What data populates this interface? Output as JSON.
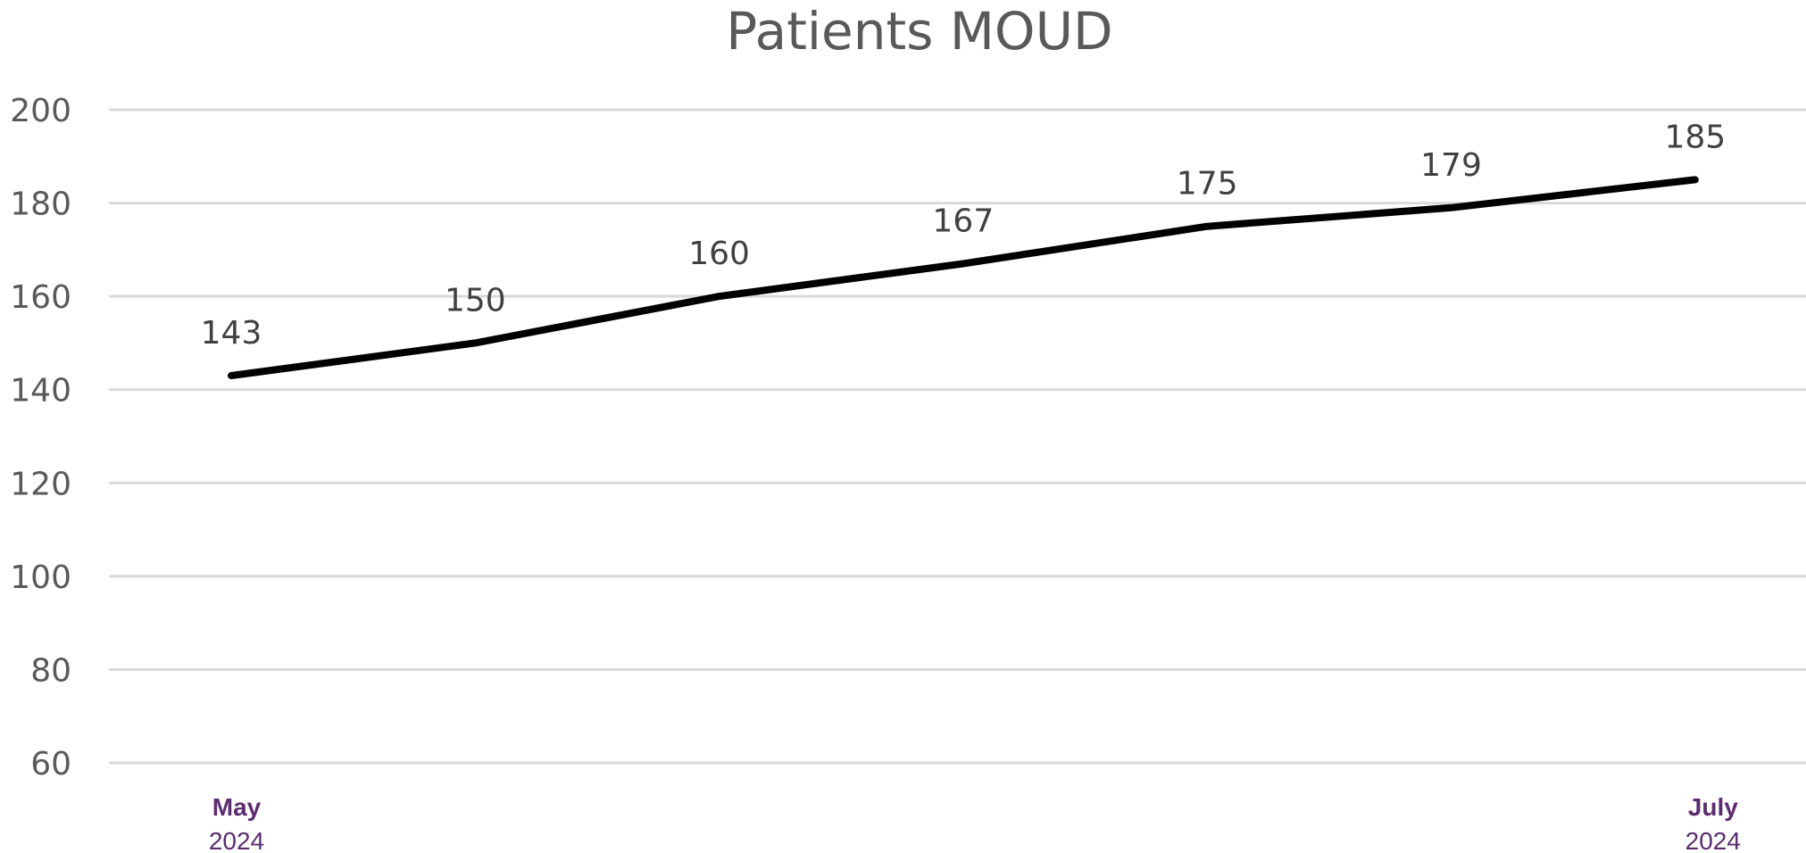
{
  "chart_data": {
    "type": "line",
    "title": "Patients MOUD",
    "xlabel": "",
    "ylabel": "",
    "ylim": [
      60,
      200
    ],
    "y_ticks": [
      60,
      80,
      100,
      120,
      140,
      160,
      180,
      200
    ],
    "grid": true,
    "legend": "none",
    "x_axis_labels": [
      {
        "month": "May",
        "year": "2024",
        "point_index": 0
      },
      {
        "month": "July",
        "year": "2024",
        "point_index": 6
      }
    ],
    "series": [
      {
        "values": [
          143,
          150,
          160,
          167,
          175,
          179,
          185
        ],
        "data_labels": [
          "143",
          "150",
          "160",
          "167",
          "175",
          "179",
          "185"
        ],
        "color": "#000000"
      }
    ],
    "colors": {
      "title": "#595959",
      "gridline": "#d9d9d9",
      "axis_text": "#595959",
      "x_label": "#5b2c6f"
    }
  }
}
